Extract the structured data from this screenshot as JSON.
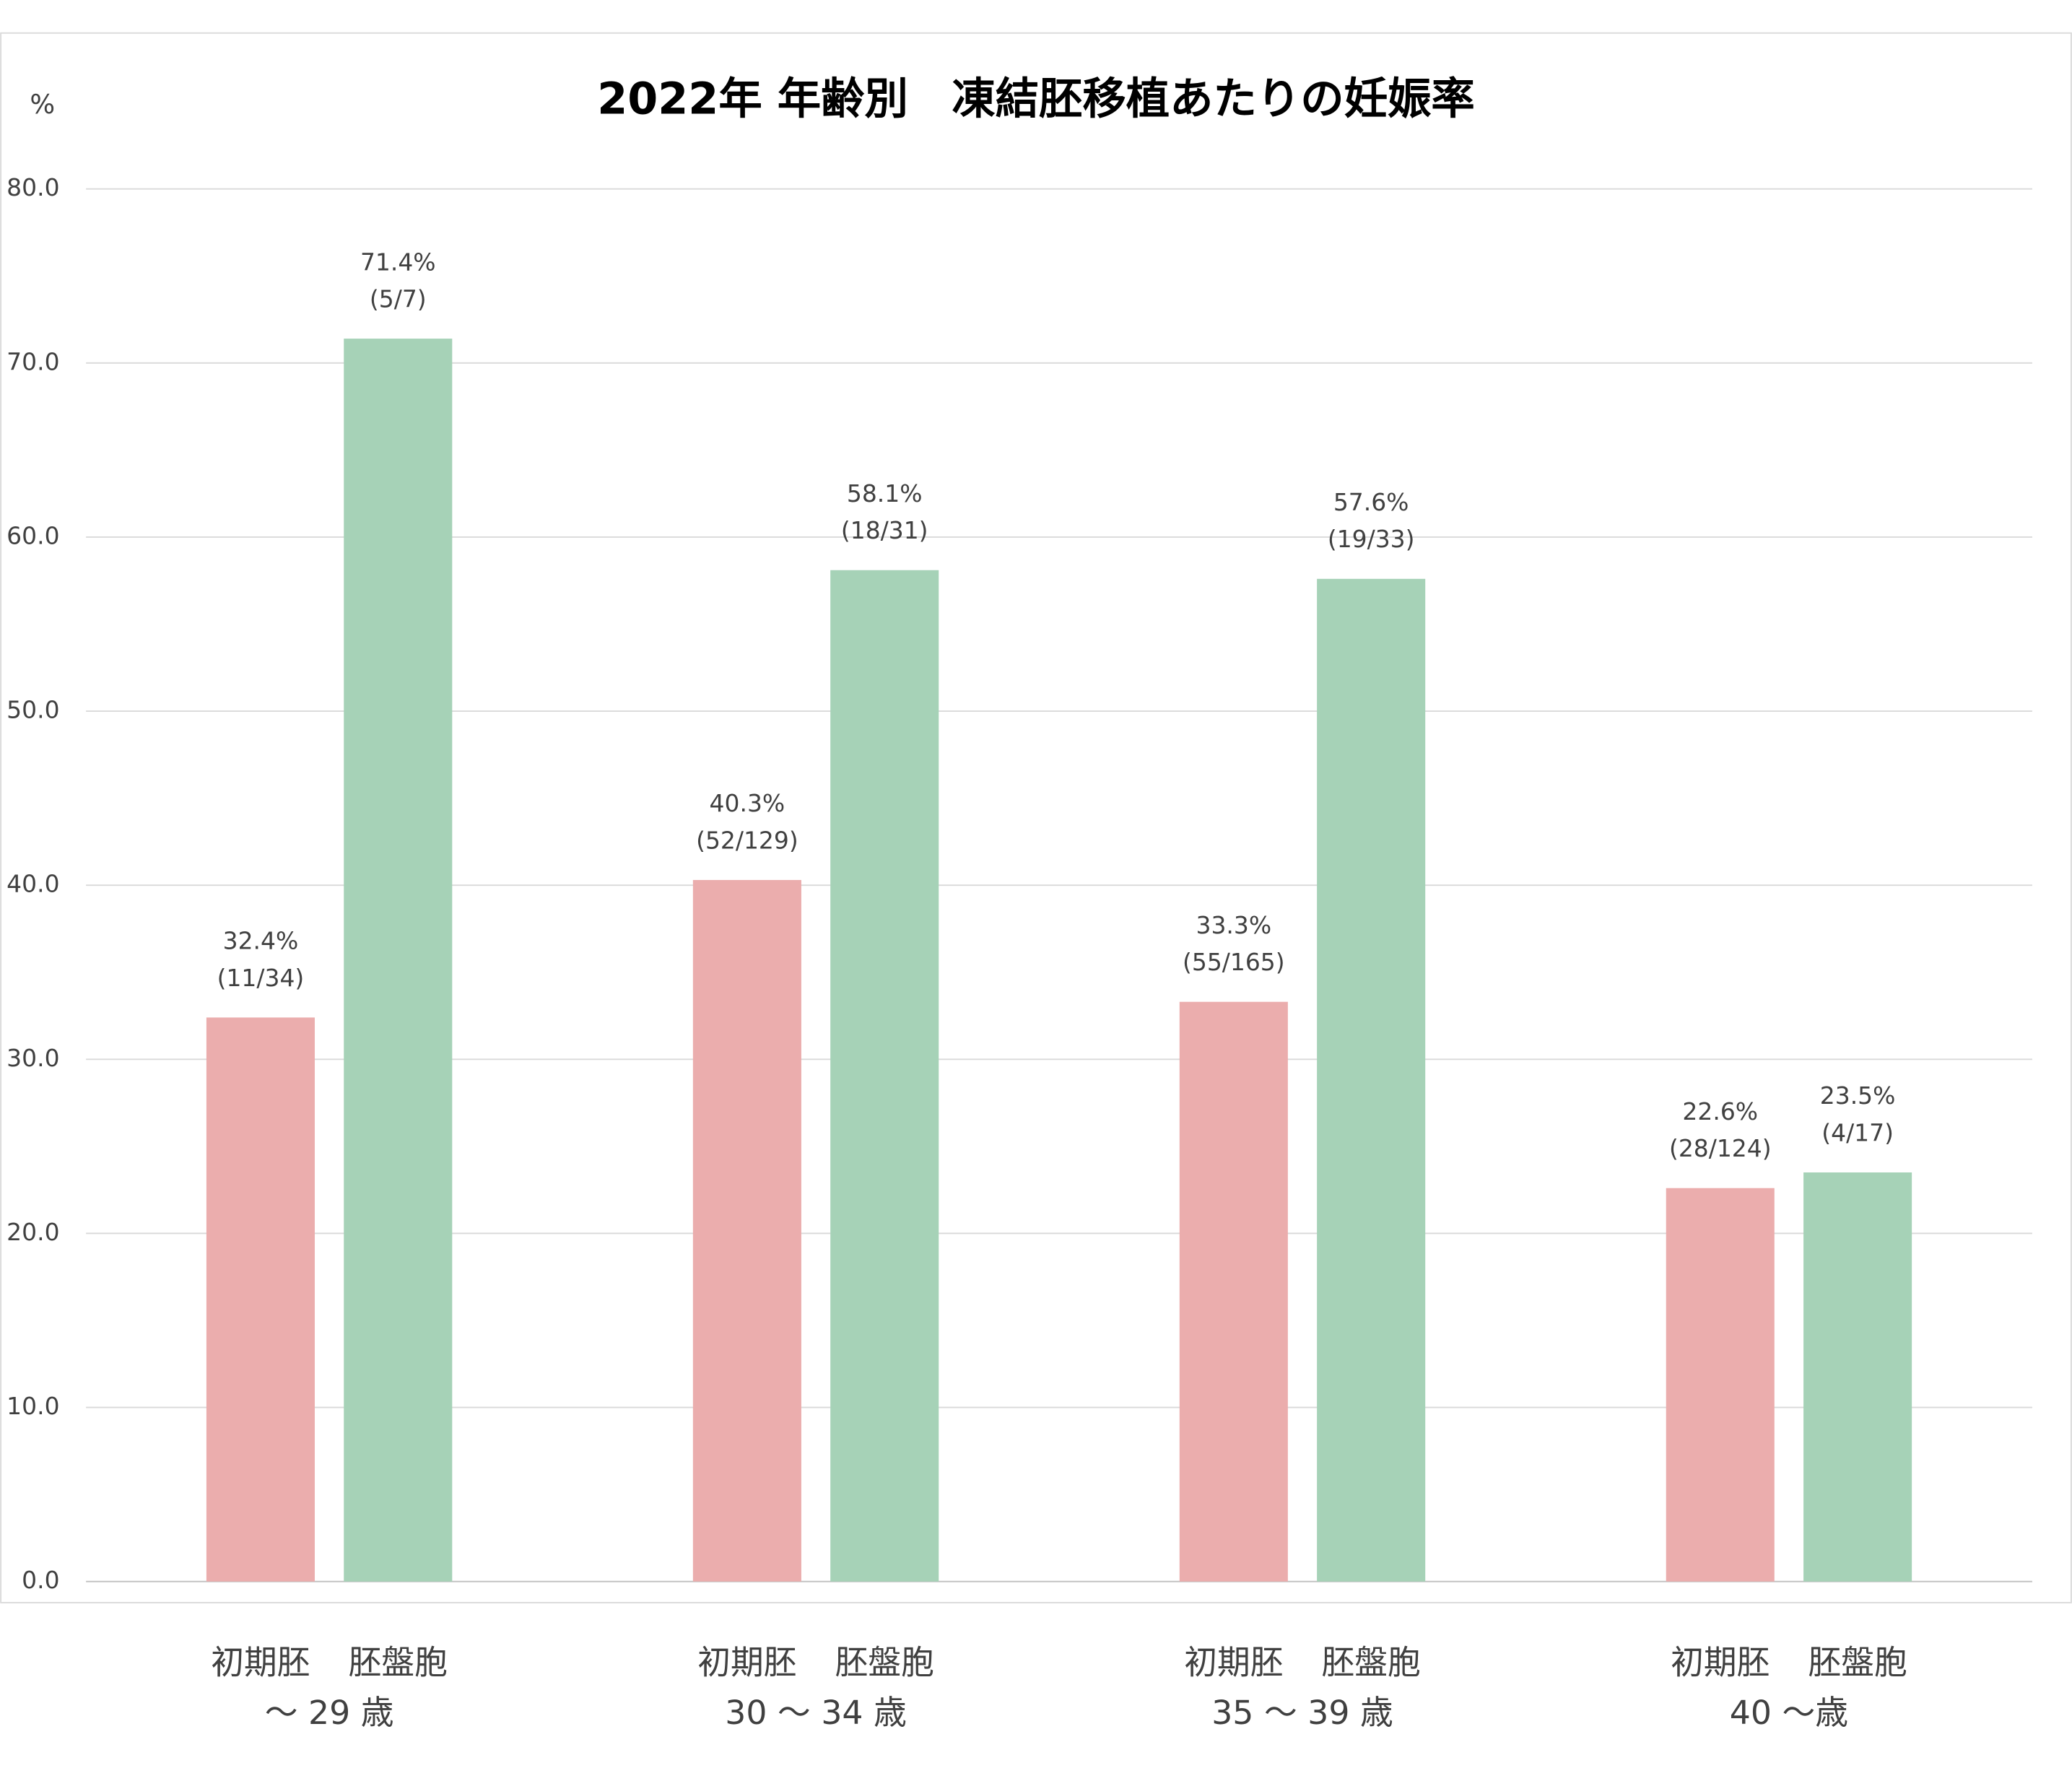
{
  "chart_data": {
    "type": "bar",
    "title": "2022年 年齢別　凍結胚移植あたりの妊娠率",
    "y_label": "%",
    "categories": [
      "～ 29 歳",
      "30 ～ 34 歳",
      "35 ～ 39 歳",
      "40 ～歳"
    ],
    "series": [
      {
        "name": "初期胚",
        "color": "#ebadad",
        "values": [
          32.4,
          40.3,
          33.3,
          22.6
        ],
        "value_labels": [
          "32.4%",
          "40.3%",
          "33.3%",
          "22.6%"
        ],
        "counts": [
          "(11/34)",
          "(52/129)",
          "(55/165)",
          "(28/124)"
        ]
      },
      {
        "name": "胚盤胞",
        "color": "#a6d2b7",
        "values": [
          71.4,
          58.1,
          57.6,
          23.5
        ],
        "value_labels": [
          "71.4%",
          "58.1%",
          "57.6%",
          "23.5%"
        ],
        "counts": [
          "(5/7)",
          "(18/31)",
          "(19/33)",
          "(4/17)"
        ]
      }
    ],
    "ylim": [
      0,
      80
    ],
    "yticks": [
      {
        "value": 0,
        "label": "0.0"
      },
      {
        "value": 10,
        "label": "10.0"
      },
      {
        "value": 20,
        "label": "20.0"
      },
      {
        "value": 30,
        "label": "30.0"
      },
      {
        "value": 40,
        "label": "40.0"
      },
      {
        "value": 50,
        "label": "50.0"
      },
      {
        "value": 60,
        "label": "60.0"
      },
      {
        "value": 70,
        "label": "70.0"
      },
      {
        "value": 80,
        "label": "80.0"
      }
    ],
    "grid": true
  }
}
